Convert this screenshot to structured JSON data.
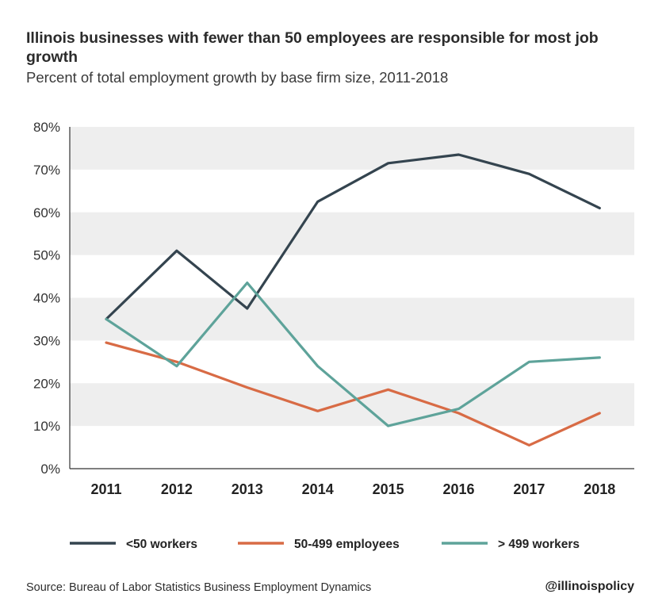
{
  "chart_data": {
    "type": "line",
    "title": "Illinois businesses with fewer than 50 employees are responsible for most job growth",
    "subtitle": "Percent of total employment growth by base firm size, 2011-2018",
    "xlabel": "",
    "ylabel": "",
    "x": [
      "2011",
      "2012",
      "2013",
      "2014",
      "2015",
      "2016",
      "2017",
      "2018"
    ],
    "ylim": [
      0,
      80
    ],
    "yticks": [
      "0%",
      "10%",
      "20%",
      "30%",
      "40%",
      "50%",
      "60%",
      "70%",
      "80%"
    ],
    "grid": "alternating horizontal bands",
    "legend_placement": "bottom",
    "series": [
      {
        "name": "<50 workers",
        "color": "#34444f",
        "values": [
          35,
          51,
          37.5,
          62.5,
          71.5,
          73.5,
          69,
          61
        ]
      },
      {
        "name": "50-499 employees",
        "color": "#d86b45",
        "values": [
          29.5,
          25,
          19,
          13.5,
          18.5,
          13,
          5.5,
          13
        ]
      },
      {
        "name": "> 499 workers",
        "color": "#5ea39a",
        "values": [
          35,
          24,
          43.5,
          24,
          10,
          14,
          25,
          26
        ]
      }
    ]
  },
  "source": "Source: Bureau of Labor Statistics Business Employment Dynamics",
  "handle": "@illinoispolicy"
}
